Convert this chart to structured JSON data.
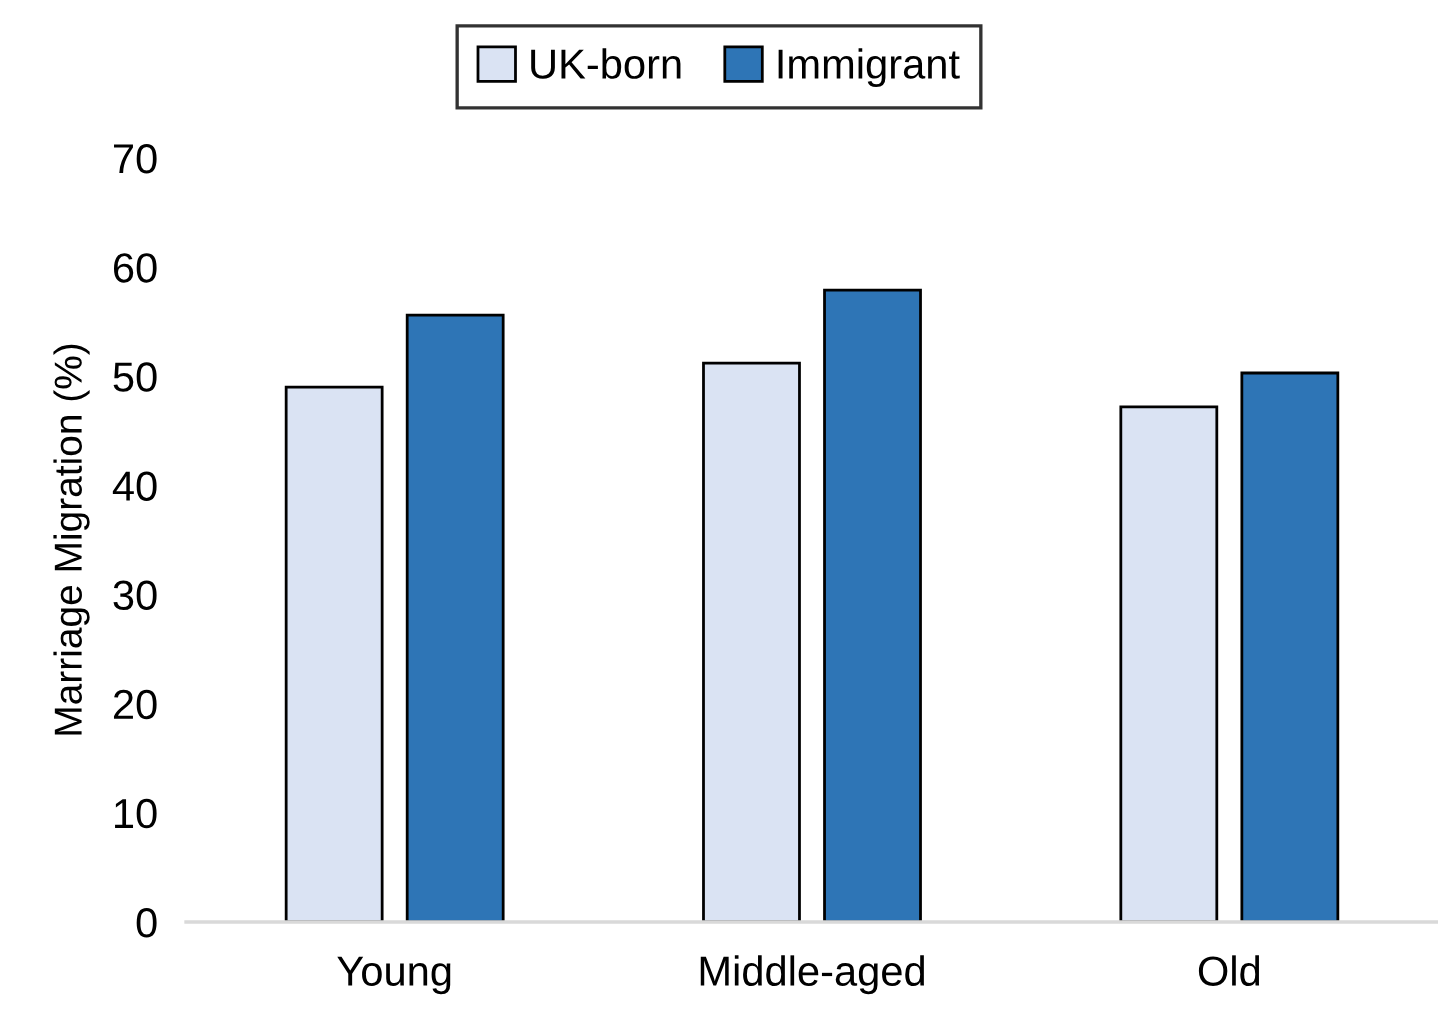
{
  "chart_data": {
    "type": "bar",
    "ylabel": "Marriage Migration (%)",
    "categories": [
      "Young",
      "Middle-aged",
      "Old"
    ],
    "series": [
      {
        "name": "UK-born",
        "color": "#dae3f3",
        "values": [
          49.0,
          51.2,
          47.2
        ]
      },
      {
        "name": "Immigrant",
        "color": "#2e75b6",
        "values": [
          55.6,
          57.9,
          50.3
        ]
      }
    ],
    "ylim": [
      0,
      70
    ],
    "yticks": [
      0,
      10,
      20,
      30,
      40,
      50,
      60,
      70
    ],
    "grid": false,
    "legend": "top"
  }
}
